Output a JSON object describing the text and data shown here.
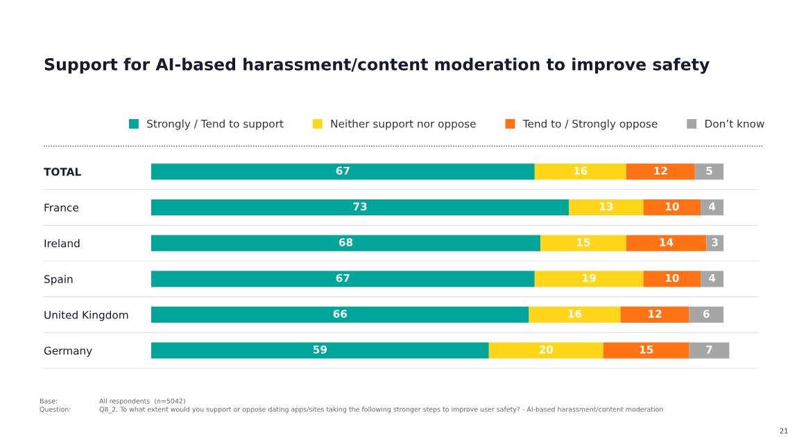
{
  "chart_data": {
    "type": "bar",
    "orientation": "horizontal",
    "stacked": true,
    "data_labels": true,
    "legend": "top",
    "grid": false,
    "title": "Support for AI-based harassment/content moderation to improve safety",
    "categories": [
      "TOTAL",
      "France",
      "Ireland",
      "Spain",
      "United Kingdom",
      "Germany"
    ],
    "series": [
      {
        "name": "Strongly / Tend to support",
        "color": "#00a699",
        "values": [
          67,
          73,
          68,
          67,
          66,
          59
        ]
      },
      {
        "name": "Neither support nor oppose",
        "color": "#ffd61a",
        "values": [
          16,
          13,
          15,
          19,
          16,
          20
        ]
      },
      {
        "name": "Tend to / Strongly oppose",
        "color": "#ff7315",
        "values": [
          12,
          10,
          14,
          10,
          12,
          15
        ]
      },
      {
        "name": "Don’t know",
        "color": "#a6a6a6",
        "values": [
          5,
          4,
          3,
          4,
          6,
          7
        ]
      }
    ],
    "annotations": [
      "Base:",
      "All respondents  (n=5042)",
      "Question:",
      "Q8_2. To what extent would you support or oppose dating apps/sites taking the following stronger steps to improve user safety? - AI-based harassment/content moderation",
      "21"
    ]
  }
}
